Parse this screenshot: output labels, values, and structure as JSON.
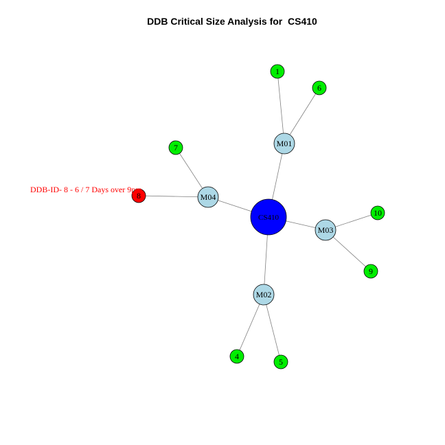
{
  "title": "DDB Critical Size Analysis for  CS410",
  "colors": {
    "center": "#0000ff",
    "machine": "#add8e6",
    "leaf": "#00ee00",
    "alert": "#ff0000",
    "edge": "#808080"
  },
  "nodes": [
    {
      "id": "CS410",
      "label": "CS410",
      "type": "center"
    },
    {
      "id": "M01",
      "label": "M01",
      "type": "machine"
    },
    {
      "id": "M02",
      "label": "M02",
      "type": "machine"
    },
    {
      "id": "M03",
      "label": "M03",
      "type": "machine"
    },
    {
      "id": "M04",
      "label": "M04",
      "type": "machine"
    },
    {
      "id": "1",
      "label": "1",
      "type": "leaf"
    },
    {
      "id": "6",
      "label": "6",
      "type": "leaf"
    },
    {
      "id": "7",
      "label": "7",
      "type": "leaf"
    },
    {
      "id": "8",
      "label": "8",
      "type": "alert"
    },
    {
      "id": "10",
      "label": "10",
      "type": "leaf"
    },
    {
      "id": "9",
      "label": "9",
      "type": "leaf"
    },
    {
      "id": "4",
      "label": "4",
      "type": "leaf"
    },
    {
      "id": "5",
      "label": "5",
      "type": "leaf"
    }
  ],
  "edges": [
    [
      "CS410",
      "M01"
    ],
    [
      "CS410",
      "M02"
    ],
    [
      "CS410",
      "M03"
    ],
    [
      "CS410",
      "M04"
    ],
    [
      "M01",
      "1"
    ],
    [
      "M01",
      "6"
    ],
    [
      "M04",
      "7"
    ],
    [
      "M04",
      "8"
    ],
    [
      "M03",
      "10"
    ],
    [
      "M03",
      "9"
    ],
    [
      "M02",
      "4"
    ],
    [
      "M02",
      "5"
    ]
  ],
  "annotation": {
    "node": "8",
    "text": "DDB-ID- 8 - 6 / 7 Days over 9pm"
  }
}
